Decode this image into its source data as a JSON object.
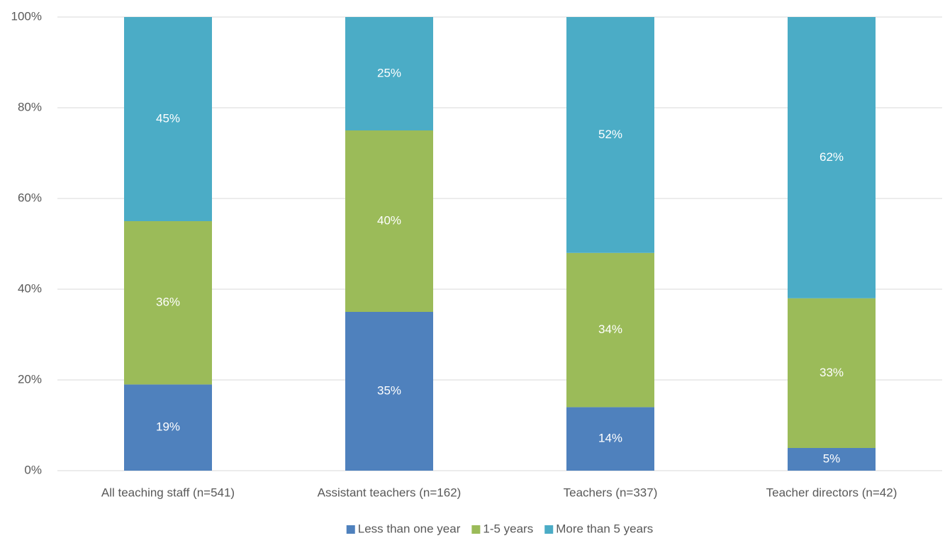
{
  "chart_data": {
    "type": "stacked_bar",
    "categories": [
      "All teaching staff (n=541)",
      "Assistant teachers (n=162)",
      "Teachers (n=337)",
      "Teacher directors (n=42)"
    ],
    "series": [
      {
        "name": "Less than one year",
        "color": "#4f81bd",
        "values": [
          19,
          35,
          14,
          5
        ],
        "value_labels": [
          "19%",
          "35%",
          "14%",
          "5%"
        ]
      },
      {
        "name": "1-5 years",
        "color": "#9bbb59",
        "values": [
          36,
          40,
          34,
          33
        ],
        "value_labels": [
          "36%",
          "40%",
          "34%",
          "33%"
        ]
      },
      {
        "name": "More than 5 years",
        "color": "#4bacc6",
        "values": [
          45,
          25,
          52,
          62
        ],
        "value_labels": [
          "45%",
          "25%",
          "52%",
          "62%"
        ]
      }
    ],
    "ylim": [
      0,
      100
    ],
    "yticks": [
      {
        "value": 0,
        "label": "0%"
      },
      {
        "value": 20,
        "label": "20%"
      },
      {
        "value": 40,
        "label": "40%"
      },
      {
        "value": 60,
        "label": "60%"
      },
      {
        "value": 80,
        "label": "80%"
      },
      {
        "value": 100,
        "label": "100%"
      }
    ],
    "grid": true,
    "legend": "bottom"
  }
}
